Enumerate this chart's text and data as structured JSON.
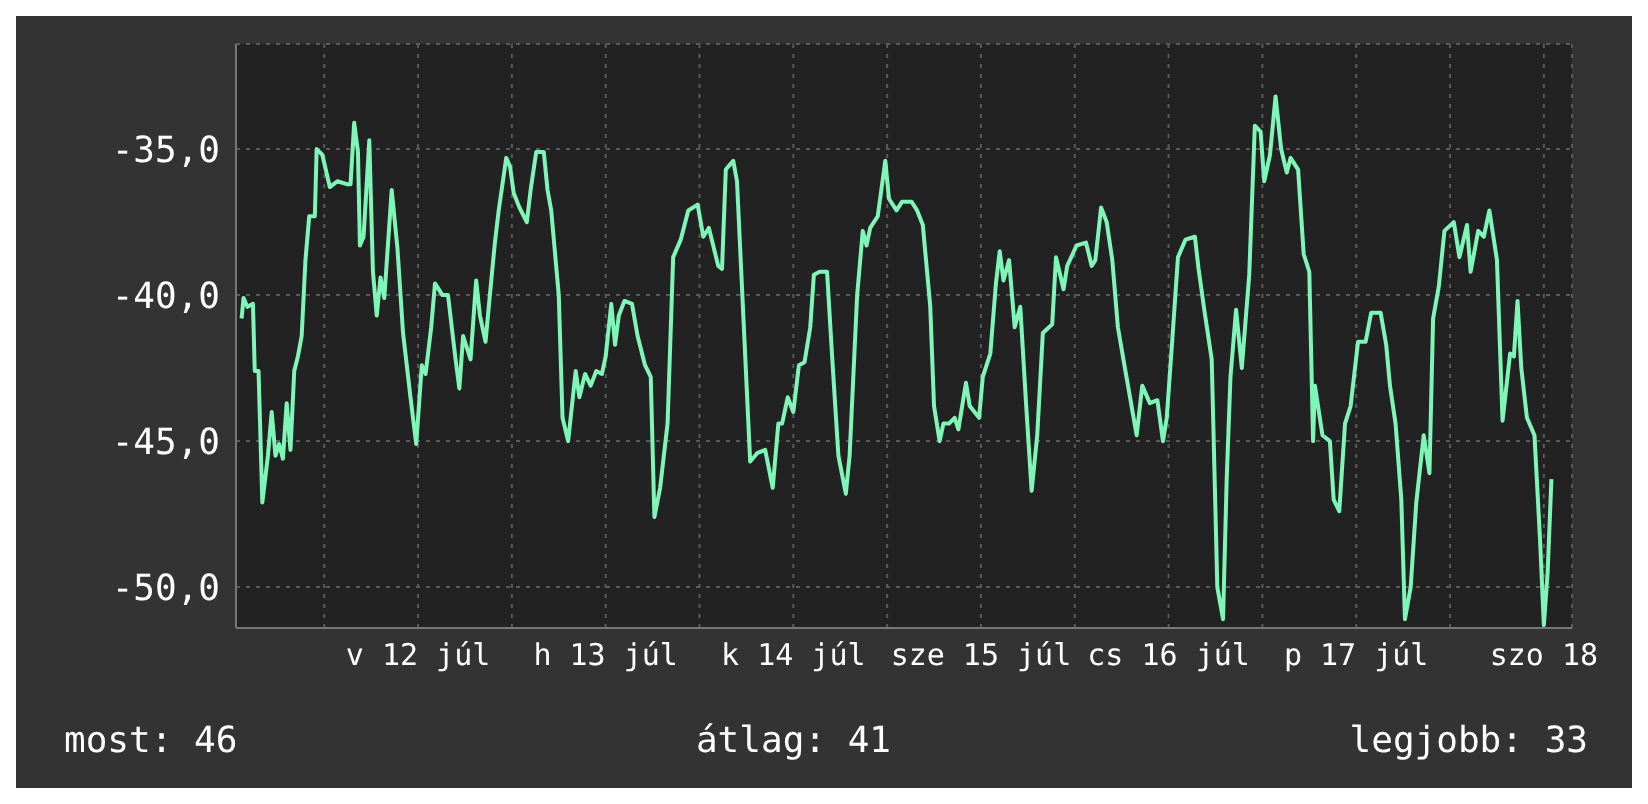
{
  "chart_data": {
    "type": "line",
    "x": [
      "--07-11T13:26",
      "--07-11T13:41",
      "--07-11T14:10",
      "--07-11T14:53",
      "--07-11T15:07",
      "--07-11T15:36",
      "--07-11T16:05",
      "--07-11T16:48",
      "--07-11T17:17",
      "--07-11T17:46",
      "--07-11T18:14",
      "--07-11T18:43",
      "--07-11T19:12",
      "--07-11T19:41",
      "--07-11T20:10",
      "--07-11T20:38",
      "--07-11T21:07",
      "--07-11T21:36",
      "--07-11T22:05",
      "--07-11T22:48",
      "--07-11T23:02",
      "--07-11T23:46",
      "--07-12T00:43",
      "--07-12T01:41",
      "--07-12T02:53",
      "--07-12T03:22",
      "--07-12T03:50",
      "--07-12T04:19",
      "--07-12T04:34",
      "--07-12T05:02",
      "--07-12T05:46",
      "--07-12T06:14",
      "--07-12T06:43",
      "--07-12T07:12",
      "--07-12T07:41",
      "--07-12T08:38",
      "--07-12T09:22",
      "--07-12T10:05",
      "--07-12T11:02",
      "--07-12T11:46",
      "--07-12T12:29",
      "--07-12T12:58",
      "--07-12T13:41",
      "--07-12T14:10",
      "--07-12T15:07",
      "--07-12T15:50",
      "--07-12T16:48",
      "--07-12T17:17",
      "--07-12T17:46",
      "--07-12T18:43",
      "--07-12T19:26",
      "--07-12T19:55",
      "--07-12T20:38",
      "--07-12T21:07",
      "--07-12T21:50",
      "--07-12T22:19",
      "--07-12T23:17",
      "--07-12T23:46",
      "--07-13T00:14",
      "--07-13T00:58",
      "--07-13T01:55",
      "--07-13T02:24",
      "--07-13T03:07",
      "--07-13T04:05",
      "--07-13T04:34",
      "--07-13T05:02",
      "--07-13T06:00",
      "--07-13T06:29",
      "--07-13T07:12",
      "--07-13T08:10",
      "--07-13T08:38",
      "--07-13T09:22",
      "--07-13T10:05",
      "--07-13T10:48",
      "--07-13T11:31",
      "--07-13T12:00",
      "--07-13T12:43",
      "--07-13T13:12",
      "--07-13T13:41",
      "--07-13T14:24",
      "--07-13T15:22",
      "--07-13T16:05",
      "--07-13T17:02",
      "--07-13T17:46",
      "--07-13T18:14",
      "--07-13T18:58",
      "--07-13T19:55",
      "--07-13T20:38",
      "--07-13T21:36",
      "--07-13T22:34",
      "--07-13T23:46",
      "--07-14T00:29",
      "--07-14T01:12",
      "--07-14T02:24",
      "--07-14T02:53",
      "--07-14T03:22",
      "--07-14T04:19",
      "--07-14T04:48",
      "--07-14T05:31",
      "--07-14T06:29",
      "--07-14T07:26",
      "--07-14T08:24",
      "--07-14T09:22",
      "--07-14T10:05",
      "--07-14T10:34",
      "--07-14T11:17",
      "--07-14T12:00",
      "--07-14T12:43",
      "--07-14T13:26",
      "--07-14T14:10",
      "--07-14T14:38",
      "--07-14T15:22",
      "--07-14T16:19",
      "--07-14T17:02",
      "--07-14T17:46",
      "--07-14T18:43",
      "--07-14T19:12",
      "--07-14T20:10",
      "--07-14T20:53",
      "--07-14T21:22",
      "--07-14T21:50",
      "--07-14T22:48",
      "--07-14T23:46",
      "--07-15T00:14",
      "--07-15T01:12",
      "--07-15T01:55",
      "--07-15T03:07",
      "--07-15T03:50",
      "--07-15T04:34",
      "--07-15T05:31",
      "--07-15T06:00",
      "--07-15T06:43",
      "--07-15T07:12",
      "--07-15T07:55",
      "--07-15T08:38",
      "--07-15T09:07",
      "--07-15T10:05",
      "--07-15T10:34",
      "--07-15T11:46",
      "--07-15T12:14",
      "--07-15T13:12",
      "--07-15T13:55",
      "--07-15T14:24",
      "--07-15T14:53",
      "--07-15T15:36",
      "--07-15T16:19",
      "--07-15T17:02",
      "--07-15T17:46",
      "--07-15T18:29",
      "--07-15T19:12",
      "--07-15T19:55",
      "--07-15T21:07",
      "--07-15T21:36",
      "--07-15T22:34",
      "--07-15T23:02",
      "--07-16T00:14",
      "--07-16T01:26",
      "--07-16T02:10",
      "--07-16T02:38",
      "--07-16T03:22",
      "--07-16T04:05",
      "--07-16T04:48",
      "--07-16T05:31",
      "--07-16T06:29",
      "--07-16T07:12",
      "--07-16T07:55",
      "--07-16T08:38",
      "--07-16T09:36",
      "--07-16T10:34",
      "--07-16T11:17",
      "--07-16T11:46",
      "--07-16T12:29",
      "--07-16T13:12",
      "--07-16T14:10",
      "--07-16T15:22",
      "--07-16T15:50",
      "--07-16T16:34",
      "--07-16T17:31",
      "--07-16T18:14",
      "--07-16T18:58",
      "--07-16T19:26",
      "--07-16T19:55",
      "--07-16T20:38",
      "--07-16T21:22",
      "--07-16T22:19",
      "--07-16T23:02",
      "--07-16T23:46",
      "--07-17T00:14",
      "--07-17T00:58",
      "--07-17T01:41",
      "--07-17T02:24",
      "--07-17T03:07",
      "--07-17T03:36",
      "--07-17T04:34",
      "--07-17T05:17",
      "--07-17T06:00",
      "--07-17T06:29",
      "--07-17T06:43",
      "--07-17T07:41",
      "--07-17T08:38",
      "--07-17T09:07",
      "--07-17T09:50",
      "--07-17T10:34",
      "--07-17T11:17",
      "--07-17T12:14",
      "--07-17T13:12",
      "--07-17T13:55",
      "--07-17T15:07",
      "--07-17T15:50",
      "--07-17T16:19",
      "--07-17T17:02",
      "--07-17T17:46",
      "--07-17T18:14",
      "--07-17T18:58",
      "--07-17T19:41",
      "--07-17T20:38",
      "--07-17T21:22",
      "--07-17T21:50",
      "--07-17T22:34",
      "--07-17T23:17",
      "--07-18T00:29",
      "--07-18T01:12",
      "--07-18T02:10",
      "--07-18T02:38",
      "--07-18T03:36",
      "--07-18T04:19",
      "--07-18T05:02",
      "--07-18T06:00",
      "--07-18T06:43",
      "--07-18T07:41",
      "--07-18T08:10",
      "--07-18T08:38",
      "--07-18T09:07",
      "--07-18T09:50",
      "--07-18T10:48",
      "--07-18T11:31",
      "--07-18T12:00",
      "--07-18T12:29",
      "--07-18T12:58"
    ],
    "series": [
      {
        "color": "#7ff5b8",
        "values": [
          -40.8,
          -40.1,
          -40.4,
          -40.3,
          -42.6,
          -42.6,
          -47.1,
          -45.5,
          -44.0,
          -45.5,
          -45.1,
          -45.6,
          -43.7,
          -45.3,
          -42.6,
          -42.1,
          -41.4,
          -38.8,
          -37.3,
          -37.3,
          -35.0,
          -35.2,
          -36.3,
          -36.1,
          -36.2,
          -36.2,
          -34.1,
          -35.1,
          -38.3,
          -38.0,
          -34.7,
          -39.2,
          -40.7,
          -39.4,
          -40.1,
          -36.4,
          -38.4,
          -41.3,
          -43.5,
          -45.1,
          -42.4,
          -42.7,
          -41.1,
          -39.6,
          -40.0,
          -40.0,
          -42.2,
          -43.2,
          -41.4,
          -42.2,
          -39.5,
          -40.7,
          -41.6,
          -40.2,
          -38.2,
          -37.1,
          -35.3,
          -35.6,
          -36.5,
          -37.0,
          -37.5,
          -36.4,
          -35.1,
          -35.1,
          -36.4,
          -37.1,
          -40.0,
          -44.2,
          -45.0,
          -42.6,
          -43.5,
          -42.7,
          -43.1,
          -42.6,
          -42.7,
          -42.1,
          -40.3,
          -41.7,
          -40.7,
          -40.2,
          -40.3,
          -41.4,
          -42.4,
          -42.8,
          -47.6,
          -46.6,
          -44.4,
          -38.7,
          -38.1,
          -37.1,
          -36.9,
          -38.0,
          -37.7,
          -39.0,
          -39.1,
          -35.7,
          -35.4,
          -36.1,
          -40.2,
          -45.7,
          -45.4,
          -45.3,
          -46.6,
          -44.4,
          -44.4,
          -43.5,
          -44.0,
          -42.4,
          -42.3,
          -41.1,
          -39.3,
          -39.2,
          -39.2,
          -42.4,
          -45.5,
          -46.8,
          -45.5,
          -40.0,
          -37.8,
          -38.3,
          -37.7,
          -37.3,
          -35.4,
          -36.7,
          -37.1,
          -36.8,
          -36.8,
          -37.1,
          -37.6,
          -40.4,
          -43.8,
          -45.0,
          -44.4,
          -44.4,
          -44.2,
          -44.6,
          -43.0,
          -43.8,
          -44.2,
          -42.8,
          -42.0,
          -39.6,
          -38.5,
          -39.5,
          -38.8,
          -41.1,
          -40.4,
          -43.7,
          -46.7,
          -44.8,
          -41.3,
          -41.0,
          -38.7,
          -39.8,
          -39.0,
          -38.3,
          -38.2,
          -39.0,
          -38.8,
          -37.0,
          -37.5,
          -38.8,
          -41.1,
          -42.6,
          -43.7,
          -44.8,
          -43.1,
          -43.7,
          -43.6,
          -45.0,
          -44.2,
          -41.5,
          -38.7,
          -38.1,
          -38.0,
          -39.1,
          -40.5,
          -42.2,
          -50.0,
          -51.1,
          -46.3,
          -42.8,
          -40.5,
          -42.5,
          -39.3,
          -34.2,
          -34.4,
          -36.1,
          -35.2,
          -33.2,
          -35.0,
          -35.8,
          -35.3,
          -35.7,
          -38.6,
          -39.2,
          -45.0,
          -43.1,
          -44.8,
          -45.0,
          -47.0,
          -47.4,
          -44.4,
          -43.8,
          -41.6,
          -41.6,
          -40.6,
          -40.6,
          -41.7,
          -43.1,
          -44.4,
          -47.0,
          -51.1,
          -50.0,
          -47.1,
          -44.8,
          -46.1,
          -40.8,
          -39.7,
          -37.8,
          -37.5,
          -38.7,
          -37.6,
          -39.2,
          -37.8,
          -38.0,
          -37.1,
          -38.8,
          -44.3,
          -42.0,
          -42.1,
          -40.2,
          -42.5,
          -44.2,
          -44.8,
          -48.4,
          -51.3,
          -49.5,
          -46.3
        ]
      }
    ],
    "xlim": [
      "--07-11T12:43",
      "--07-18T15:36"
    ],
    "xticks": [
      {
        "value": "--07-12T00:00",
        "label": null
      },
      {
        "value": "--07-12T12:00",
        "label": "v 12 júl"
      },
      {
        "value": "--07-13T00:00",
        "label": null
      },
      {
        "value": "--07-13T12:00",
        "label": "h 13 júl"
      },
      {
        "value": "--07-14T00:00",
        "label": null
      },
      {
        "value": "--07-14T12:00",
        "label": "k 14 júl"
      },
      {
        "value": "--07-15T00:00",
        "label": null
      },
      {
        "value": "--07-15T12:00",
        "label": "sze 15 júl"
      },
      {
        "value": "--07-16T00:00",
        "label": null
      },
      {
        "value": "--07-16T12:00",
        "label": "cs 16 júl"
      },
      {
        "value": "--07-17T00:00",
        "label": null
      },
      {
        "value": "--07-17T12:00",
        "label": "p 17 júl"
      },
      {
        "value": "--07-18T00:00",
        "label": null
      },
      {
        "value": "--07-18T12:00",
        "label": "szo 18"
      }
    ],
    "ylim": [
      -51.4,
      -31.4
    ],
    "yticks": [
      {
        "value": -35,
        "label": "-35,0"
      },
      {
        "value": -40,
        "label": "-40,0"
      },
      {
        "value": -45,
        "label": "-45,0"
      },
      {
        "value": -50,
        "label": "-50,0"
      }
    ],
    "grid": true,
    "marker": "none",
    "line_style": "solid",
    "annotations": [
      "most: 46",
      "átlag: 41",
      "legjobb: 33"
    ]
  }
}
